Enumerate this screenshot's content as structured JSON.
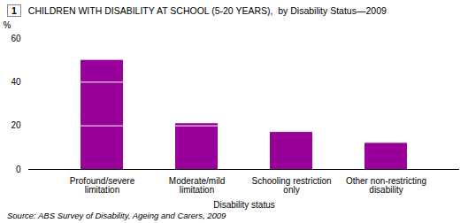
{
  "chart_data": {
    "type": "bar",
    "graph_number": "1",
    "title": "CHILDREN WITH DISABILITY AT SCHOOL (5-20 YEARS),  by Disability Status—2009",
    "categories": [
      "Profound/severe\nlimitation",
      "Moderate/mild\nlimitation",
      "Schooling restriction\nonly",
      "Other non-restricting\ndisability"
    ],
    "values": [
      50,
      21,
      17,
      12
    ],
    "color": "#990099",
    "xlabel": "Disability status",
    "ylabel": "%",
    "ylim": [
      0,
      60
    ],
    "yticks": [
      0,
      20,
      40,
      60
    ],
    "grid": false,
    "bar_lines": [
      [
        20,
        40
      ],
      [
        20
      ],
      [],
      []
    ],
    "source": "Source: ABS Survey of Disability, Ageing and Carers, 2009"
  }
}
